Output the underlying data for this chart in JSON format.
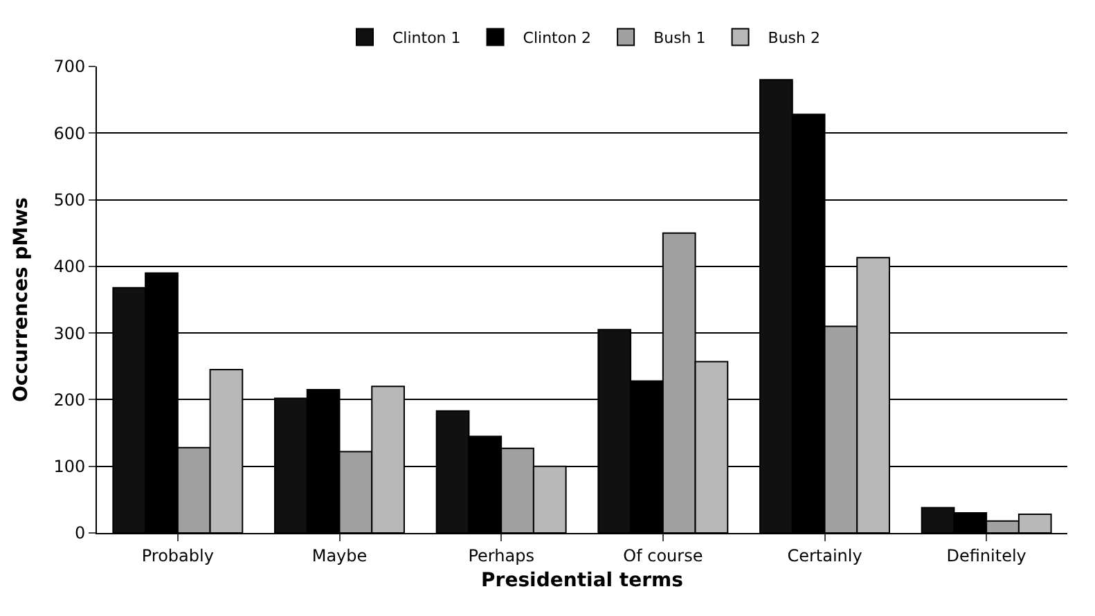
{
  "chart_data": {
    "type": "bar",
    "xlabel": "Presidential terms",
    "ylabel": "Occurrences pMws",
    "categories": [
      "Probably",
      "Maybe",
      "Perhaps",
      "Of course",
      "Certainly",
      "Definitely"
    ],
    "series": [
      {
        "name": "Clinton 1",
        "color": "#111111",
        "values": [
          368,
          202,
          183,
          305,
          680,
          38
        ]
      },
      {
        "name": "Clinton 2",
        "color": "#000000",
        "values": [
          390,
          215,
          145,
          228,
          628,
          30
        ]
      },
      {
        "name": "Bush 1",
        "color": "#a0a0a0",
        "values": [
          128,
          122,
          127,
          450,
          310,
          18
        ]
      },
      {
        "name": "Bush 2",
        "color": "#b8b8b8",
        "values": [
          245,
          220,
          100,
          257,
          413,
          28
        ]
      }
    ],
    "ylim": [
      0,
      700
    ],
    "yticks": [
      0,
      100,
      200,
      300,
      400,
      500,
      600,
      700
    ],
    "grid": "y",
    "legend": "top"
  }
}
